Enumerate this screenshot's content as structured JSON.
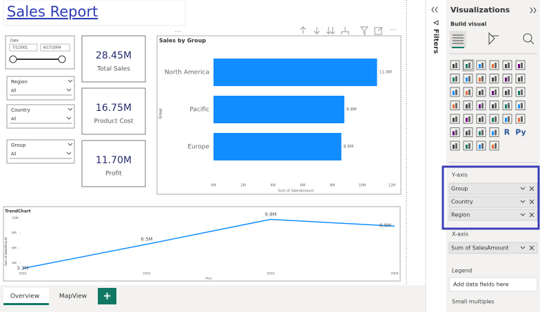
{
  "report": {
    "title": "Sales Report"
  },
  "slicers": {
    "date": {
      "label": "Date",
      "start": "7/1/2001",
      "end": "6/17/2004"
    },
    "dropdowns": [
      {
        "label": "Region",
        "value": "All"
      },
      {
        "label": "Country",
        "value": "All"
      },
      {
        "label": "Group",
        "value": "All"
      }
    ]
  },
  "cards": [
    {
      "value": "28.45M",
      "label": "Total Sales"
    },
    {
      "value": "16.75M",
      "label": "Product Cost"
    },
    {
      "value": "11.70M",
      "label": "Profit"
    }
  ],
  "chart_data": [
    {
      "type": "bar",
      "orientation": "horizontal",
      "title": "Sales by Group",
      "x_label": "Sum of SalesAmount",
      "y_label": "Group",
      "categories": [
        "North America",
        "Pacific",
        "Europe"
      ],
      "values": [
        11.0,
        8.8,
        8.6
      ],
      "value_labels": [
        "11.0M",
        "8.8M",
        "8.6M"
      ],
      "color": "#118dff",
      "xlim": [
        0,
        12
      ],
      "xticks": [
        {
          "value": 0,
          "label": "0M"
        },
        {
          "value": 2,
          "label": "2M"
        },
        {
          "value": 4,
          "label": "4M"
        },
        {
          "value": 6,
          "label": "6M"
        },
        {
          "value": 8,
          "label": "8M"
        },
        {
          "value": 10,
          "label": "10M"
        },
        {
          "value": 12,
          "label": "12M"
        }
      ]
    },
    {
      "type": "line",
      "title": "TrendChart",
      "x_label": "Year",
      "y_label": "Sum of SalesAmount",
      "x": [
        2001,
        2002,
        2003,
        2004
      ],
      "values": [
        3.3,
        6.5,
        9.8,
        8.9
      ],
      "value_labels": [
        "3.3M",
        "6.5M",
        "9.8M",
        "8.9M"
      ],
      "color": "#118dff",
      "xlim": [
        2001,
        2004
      ],
      "xticks": [
        2001,
        2002,
        2003,
        2004
      ],
      "ylim": [
        3,
        10.3
      ],
      "yticks": [
        {
          "value": 4,
          "label": "4M"
        },
        {
          "value": 6,
          "label": "6M"
        },
        {
          "value": 8,
          "label": "8M"
        },
        {
          "value": 10,
          "label": "10M"
        }
      ]
    }
  ],
  "filters_pane": {
    "title": "Filters"
  },
  "visualizations_pane": {
    "title": "Visualizations",
    "subtitle": "Build visual",
    "icon_texts": [
      "R",
      "Py"
    ],
    "wells": [
      {
        "label": "Y-axis",
        "fields": [
          "Group",
          "Country",
          "Region"
        ]
      },
      {
        "label": "X-axis",
        "fields": [
          "Sum of SalesAmount"
        ]
      },
      {
        "label": "Legend",
        "placeholder": "Add data fields here"
      },
      {
        "label": "Small multiples"
      }
    ]
  },
  "tabs": [
    "Overview",
    "MapView"
  ],
  "add_page": "+"
}
